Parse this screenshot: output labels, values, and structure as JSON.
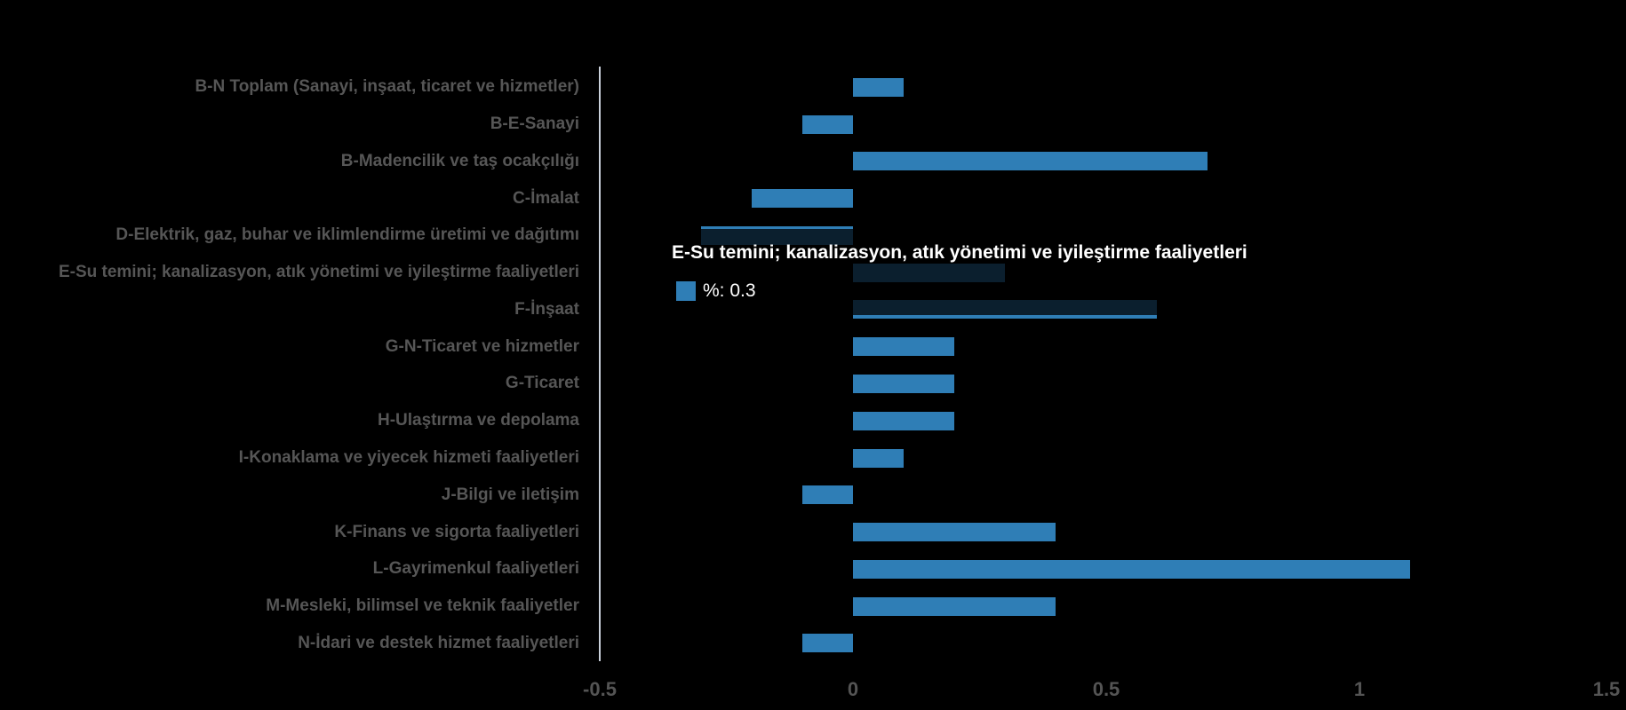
{
  "chart_data": {
    "type": "bar",
    "orientation": "horizontal",
    "title": "",
    "xlabel": "",
    "ylabel": "",
    "categories": [
      "B-N Toplam (Sanayi, inşaat, ticaret ve hizmetler)",
      "B-E-Sanayi",
      "B-Madencilik ve taş ocakçılığı",
      "C-İmalat",
      "D-Elektrik, gaz, buhar ve iklimlendirme üretimi ve dağıtımı",
      "E-Su temini; kanalizasyon, atık yönetimi ve iyileştirme faaliyetleri",
      "F-İnşaat",
      "G-N-Ticaret ve hizmetler",
      "G-Ticaret",
      "H-Ulaştırma ve depolama",
      "I-Konaklama ve yiyecek hizmeti faaliyetleri",
      "J-Bilgi ve iletişim",
      "K-Finans ve sigorta faaliyetleri",
      "L-Gayrimenkul faaliyetleri",
      "M-Mesleki, bilimsel ve teknik faaliyetler",
      "N-İdari ve destek hizmet faaliyetleri"
    ],
    "series": [
      {
        "name": "%",
        "values": [
          0.1,
          -0.1,
          0.7,
          -0.2,
          -0.3,
          0.3,
          0.6,
          0.2,
          0.2,
          0.2,
          0.1,
          -0.1,
          0.4,
          1.1,
          0.4,
          -0.1
        ]
      }
    ],
    "xlim": [
      -0.5,
      1.5
    ],
    "x_ticks": [
      "-0.5",
      "0",
      "0.5",
      "1",
      "1.5"
    ],
    "grid": false,
    "legend_position": "none",
    "bar_color": "#2f7eb6",
    "label_color": "#565656",
    "tick_label_color": "#545454",
    "axis_line_color": "#c9d0da",
    "background_color": "#000000"
  },
  "tooltip": {
    "title": "E-Su temini; kanalizasyon, atık yönetimi ve iyileştirme faaliyetleri",
    "series_name": "%",
    "value": "0.3",
    "value_text": "%: 0.3",
    "marker_color": "#2f7eb6"
  }
}
